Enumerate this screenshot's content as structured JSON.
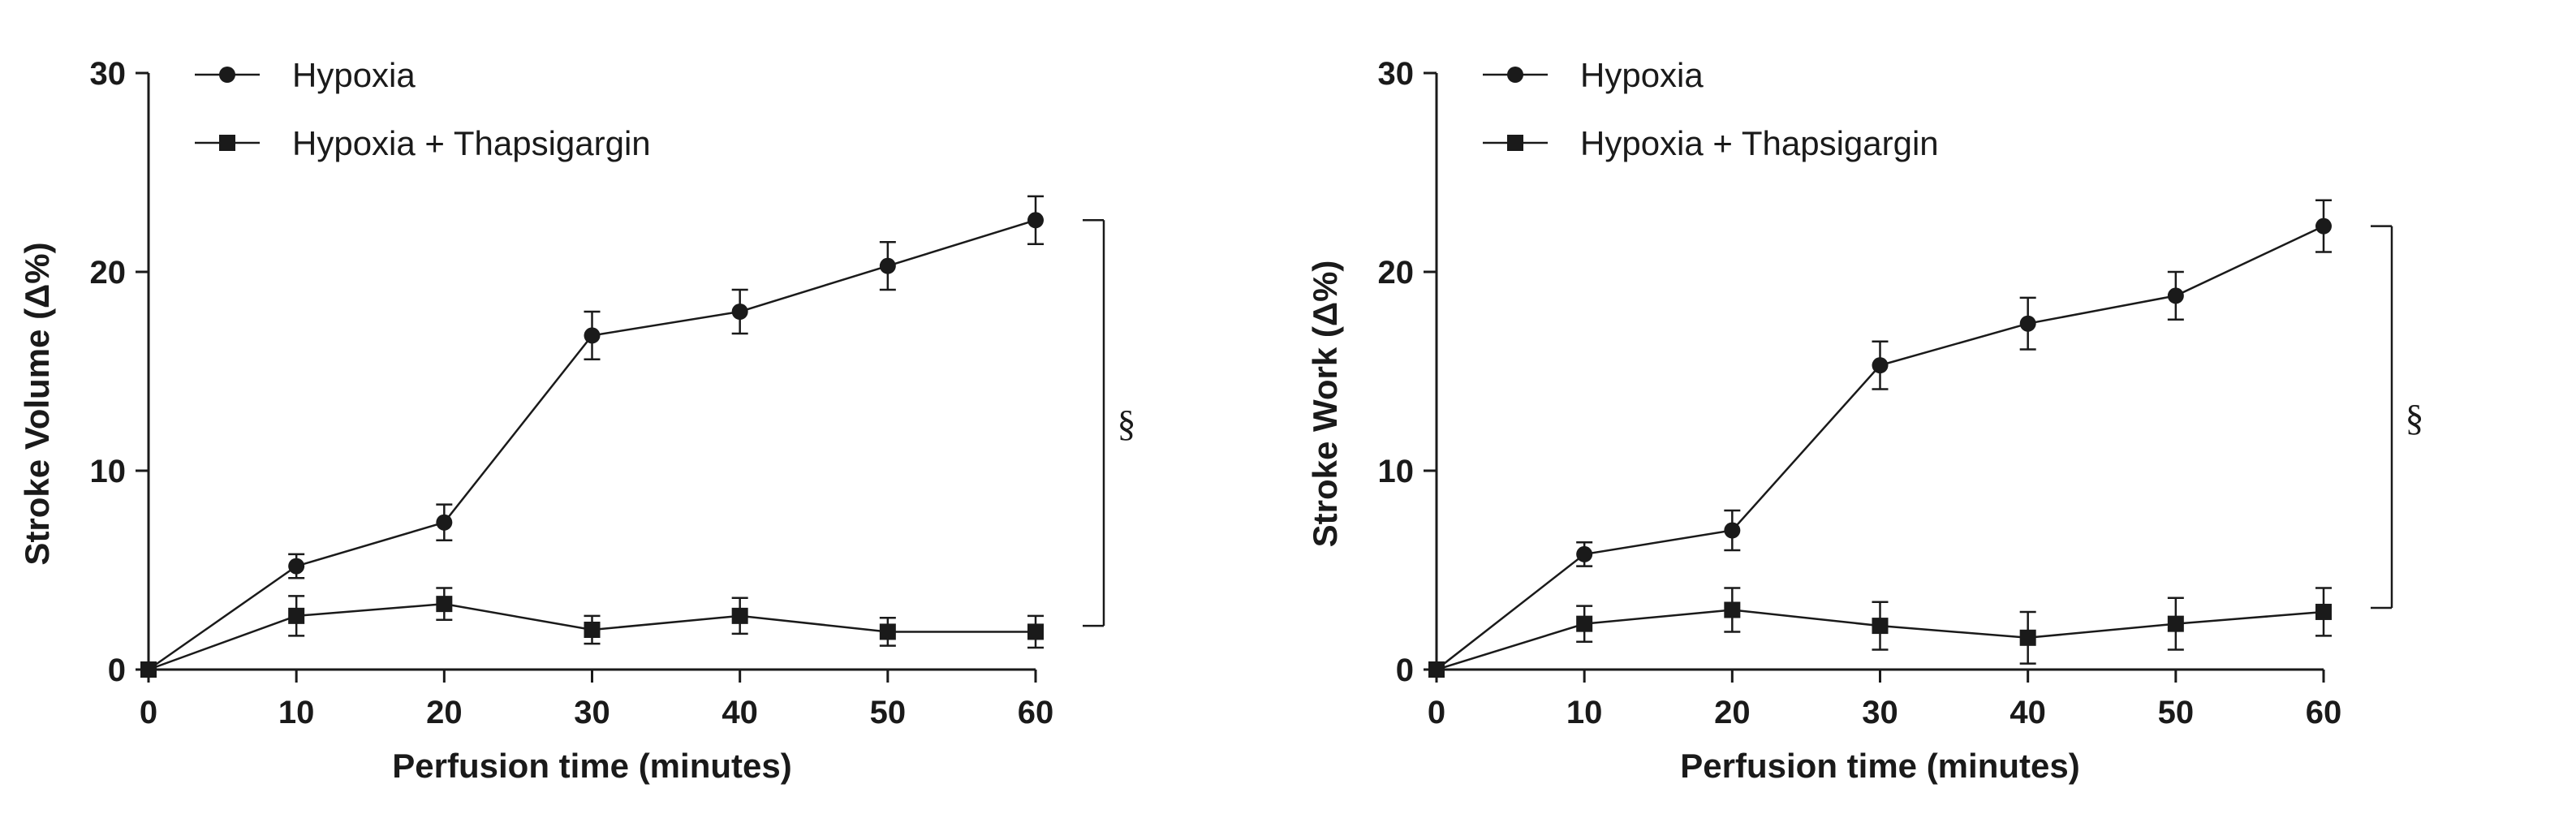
{
  "chart_data": [
    {
      "type": "line",
      "xlabel": "Perfusion time (minutes)",
      "ylabel": "Stroke Volume (Δ%)",
      "x": [
        0,
        10,
        20,
        30,
        40,
        50,
        60
      ],
      "xticks": [
        "0",
        "10",
        "20",
        "30",
        "40",
        "50",
        "60"
      ],
      "yticks": [
        "0",
        "10",
        "20",
        "30"
      ],
      "xlim": [
        0,
        60
      ],
      "ylim": [
        0,
        30
      ],
      "grid": false,
      "legend_position": "top-left",
      "series": [
        {
          "name": "Hypoxia",
          "marker": "circle",
          "values": [
            0,
            5.2,
            7.4,
            16.8,
            18.0,
            20.3,
            22.6
          ],
          "errors": [
            0,
            0.6,
            0.9,
            1.2,
            1.1,
            1.2,
            1.2
          ]
        },
        {
          "name": "Hypoxia + Thapsigargin",
          "marker": "square",
          "values": [
            0,
            2.7,
            3.3,
            2.0,
            2.7,
            1.9,
            1.9
          ],
          "errors": [
            0,
            1.0,
            0.8,
            0.7,
            0.9,
            0.7,
            0.8
          ]
        }
      ],
      "annotation": {
        "text": "§",
        "y_range": [
          2.2,
          22.6
        ]
      }
    },
    {
      "type": "line",
      "xlabel": "Perfusion time (minutes)",
      "ylabel": "Stroke Work (Δ%)",
      "x": [
        0,
        10,
        20,
        30,
        40,
        50,
        60
      ],
      "xticks": [
        "0",
        "10",
        "20",
        "30",
        "40",
        "50",
        "60"
      ],
      "yticks": [
        "0",
        "10",
        "20",
        "30"
      ],
      "xlim": [
        0,
        60
      ],
      "ylim": [
        0,
        30
      ],
      "grid": false,
      "legend_position": "top-left",
      "series": [
        {
          "name": "Hypoxia",
          "marker": "circle",
          "values": [
            0,
            5.8,
            7.0,
            15.3,
            17.4,
            18.8,
            22.3
          ],
          "errors": [
            0,
            0.6,
            1.0,
            1.2,
            1.3,
            1.2,
            1.3
          ]
        },
        {
          "name": "Hypoxia + Thapsigargin",
          "marker": "square",
          "values": [
            0,
            2.3,
            3.0,
            2.2,
            1.6,
            2.3,
            2.9
          ],
          "errors": [
            0,
            0.9,
            1.1,
            1.2,
            1.3,
            1.3,
            1.2
          ]
        }
      ],
      "annotation": {
        "text": "§",
        "y_range": [
          3.1,
          22.3
        ]
      }
    }
  ]
}
